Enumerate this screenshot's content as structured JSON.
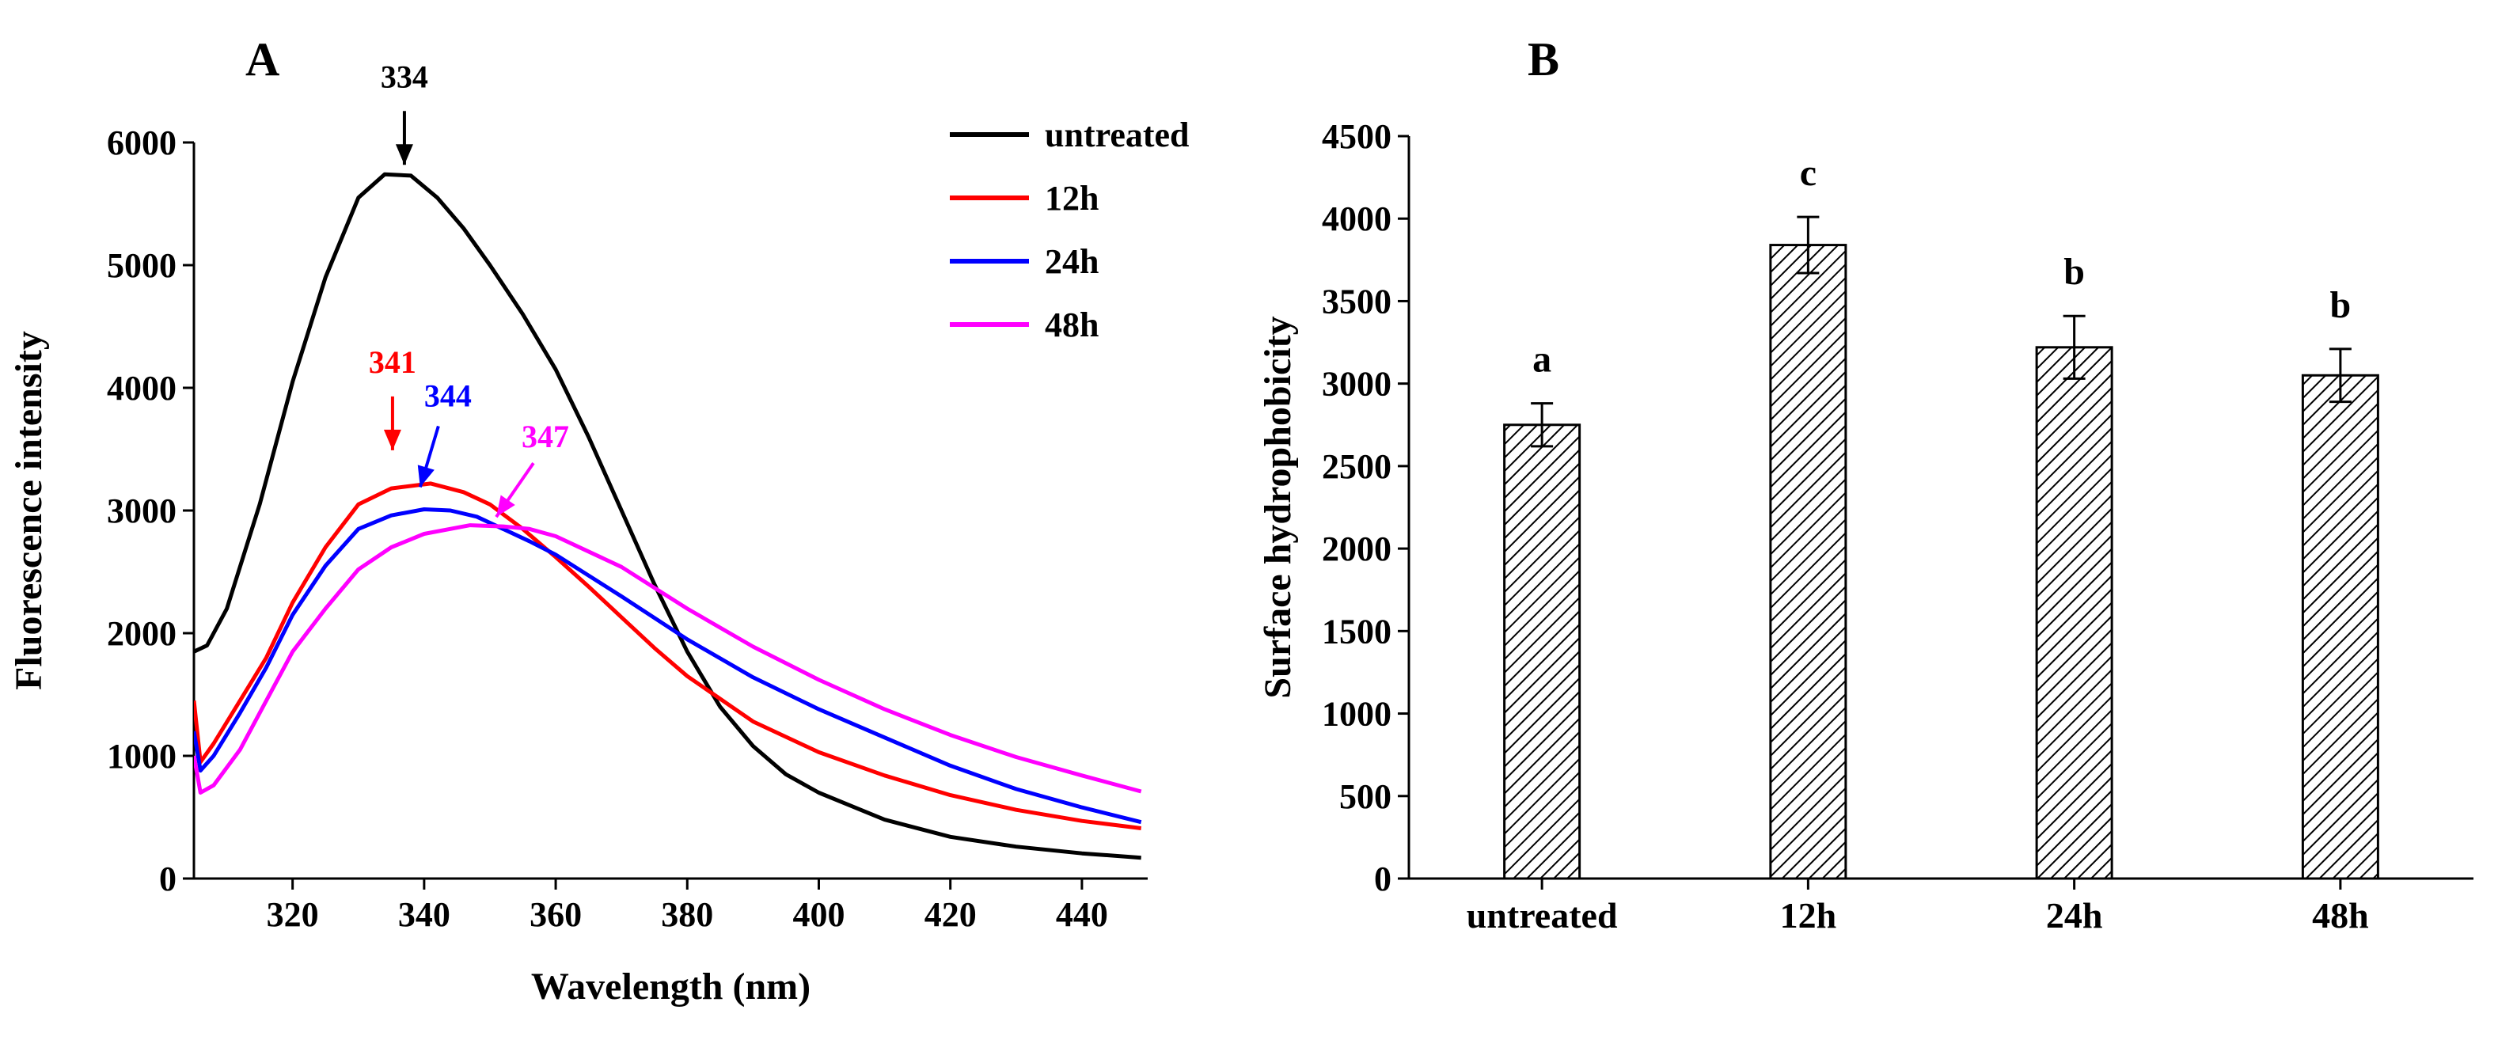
{
  "chart_data": [
    {
      "panel": "A",
      "type": "line",
      "xlabel": "Wavelength (nm)",
      "ylabel": "Fluorescence intensity",
      "xlim": [
        305,
        450
      ],
      "ylim": [
        0,
        6000
      ],
      "xticks": [
        320,
        340,
        360,
        380,
        400,
        420,
        440
      ],
      "yticks": [
        0,
        1000,
        2000,
        3000,
        4000,
        5000,
        6000
      ],
      "legend": "top-right",
      "grid": false,
      "series": [
        {
          "name": "untreated",
          "color": "#000000",
          "x": [
            305,
            307,
            310,
            315,
            320,
            325,
            330,
            334,
            338,
            342,
            346,
            350,
            355,
            360,
            365,
            370,
            375,
            380,
            385,
            390,
            395,
            400,
            410,
            420,
            430,
            440,
            449
          ],
          "y": [
            1850,
            1900,
            2200,
            3050,
            4050,
            4900,
            5550,
            5740,
            5730,
            5550,
            5300,
            5000,
            4600,
            4150,
            3600,
            3000,
            2400,
            1850,
            1400,
            1080,
            850,
            700,
            480,
            340,
            260,
            205,
            170
          ]
        },
        {
          "name": "12h",
          "color": "#ff0000",
          "x": [
            305,
            306,
            308,
            312,
            316,
            320,
            325,
            330,
            335,
            341,
            346,
            350,
            355,
            360,
            365,
            370,
            375,
            380,
            390,
            400,
            410,
            420,
            430,
            440,
            449
          ],
          "y": [
            1450,
            950,
            1100,
            1450,
            1800,
            2250,
            2700,
            3050,
            3180,
            3220,
            3150,
            3050,
            2850,
            2620,
            2380,
            2130,
            1880,
            1650,
            1280,
            1030,
            840,
            680,
            560,
            470,
            410
          ]
        },
        {
          "name": "24h",
          "color": "#0000ff",
          "x": [
            305,
            306,
            308,
            312,
            316,
            320,
            325,
            330,
            335,
            340,
            344,
            348,
            352,
            356,
            360,
            370,
            380,
            390,
            400,
            410,
            420,
            430,
            440,
            449
          ],
          "y": [
            1200,
            880,
            1000,
            1350,
            1720,
            2150,
            2550,
            2850,
            2960,
            3010,
            3000,
            2950,
            2850,
            2750,
            2640,
            2300,
            1950,
            1640,
            1380,
            1150,
            920,
            730,
            580,
            460
          ]
        },
        {
          "name": "48h",
          "color": "#ff00ff",
          "x": [
            305,
            306,
            308,
            312,
            316,
            320,
            325,
            330,
            335,
            340,
            347,
            352,
            356,
            360,
            370,
            380,
            390,
            400,
            410,
            420,
            430,
            440,
            449
          ],
          "y": [
            1000,
            700,
            760,
            1050,
            1450,
            1850,
            2200,
            2520,
            2700,
            2810,
            2880,
            2870,
            2850,
            2790,
            2540,
            2200,
            1890,
            1620,
            1380,
            1170,
            990,
            840,
            710
          ]
        }
      ],
      "annotations": [
        {
          "text": "334",
          "x": 337,
          "y": 5740,
          "color": "#000000"
        },
        {
          "text": "341",
          "x": 337,
          "y": 3220,
          "color": "#ff0000"
        },
        {
          "text": "344",
          "x": 340,
          "y": 3010,
          "color": "#0000ff"
        },
        {
          "text": "347",
          "x": 350,
          "y": 2870,
          "color": "#ff00ff"
        }
      ]
    },
    {
      "panel": "B",
      "type": "bar",
      "xlabel": "",
      "ylabel": "Surface hydrophobicity",
      "ylim": [
        0,
        4500
      ],
      "yticks": [
        0,
        500,
        1000,
        1500,
        2000,
        2500,
        3000,
        3500,
        4000,
        4500
      ],
      "categories": [
        "untreated",
        "12h",
        "24h",
        "48h"
      ],
      "values": [
        2750,
        3840,
        3220,
        3050
      ],
      "errors": [
        130,
        170,
        190,
        160
      ],
      "significance": [
        "a",
        "c",
        "b",
        "b"
      ],
      "bar_pattern": "diagonal-hatch",
      "grid": false
    }
  ]
}
